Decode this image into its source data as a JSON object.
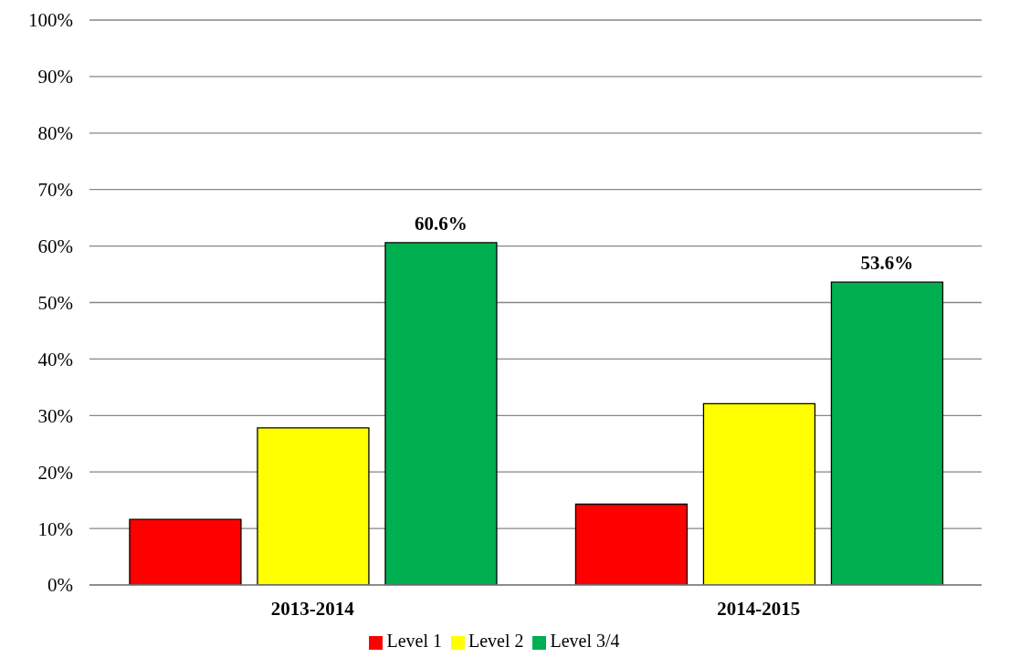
{
  "chart_data": {
    "type": "bar",
    "categories": [
      "2013-2014",
      "2014-2015"
    ],
    "series": [
      {
        "name": "Level 1",
        "color": "#ff0000",
        "values": [
          11.6,
          14.3
        ]
      },
      {
        "name": "Level 2",
        "color": "#ffff00",
        "values": [
          27.8,
          32.1
        ]
      },
      {
        "name": "Level 3/4",
        "color": "#00b050",
        "values": [
          60.6,
          53.6
        ],
        "value_labels": [
          "60.6%",
          "53.6%"
        ]
      }
    ],
    "ylim": [
      0,
      100
    ],
    "yticks": [
      {
        "value": 0,
        "label": "0%"
      },
      {
        "value": 10,
        "label": "10%"
      },
      {
        "value": 20,
        "label": "20%"
      },
      {
        "value": 30,
        "label": "30%"
      },
      {
        "value": 40,
        "label": "40%"
      },
      {
        "value": 50,
        "label": "50%"
      },
      {
        "value": 60,
        "label": "60%"
      },
      {
        "value": 70,
        "label": "70%"
      },
      {
        "value": 80,
        "label": "80%"
      },
      {
        "value": 90,
        "label": "90%"
      },
      {
        "value": 100,
        "label": "100%"
      }
    ],
    "grid": "y",
    "legend": "bottom"
  }
}
